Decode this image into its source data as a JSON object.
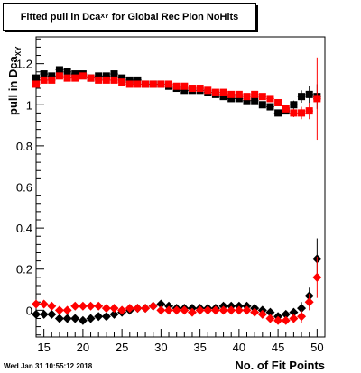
{
  "title": {
    "main": "Fitted pull in Dca",
    "subscript": "XY",
    "suffix": " for Global Rec Pion NoHits"
  },
  "footer": {
    "date": "Wed Jan 31 10:55:12 2018"
  },
  "chart_data": {
    "type": "scatter",
    "xlabel": "No. of Fit Points",
    "ylabel": "pull in Dca",
    "ylabel_sub": "XY",
    "xlim": [
      14,
      51
    ],
    "ylim": [
      -0.13,
      1.33
    ],
    "x_ticks": [
      15,
      20,
      25,
      30,
      35,
      40,
      45,
      50
    ],
    "y_ticks": [
      0,
      0.2,
      0.4,
      0.6,
      0.8,
      1,
      1.2
    ],
    "x_tick_labels": [
      "15",
      "20",
      "25",
      "30",
      "35",
      "40",
      "45",
      "50"
    ],
    "y_tick_labels": [
      "0",
      "0.2",
      "0.4",
      "0.6",
      "0.8",
      "1",
      "1.2"
    ],
    "grid": false,
    "series": [
      {
        "marker": "square",
        "color": "#000000",
        "x": [
          14,
          15,
          16,
          17,
          18,
          19,
          20,
          21,
          22,
          23,
          24,
          25,
          26,
          27,
          28,
          29,
          30,
          31,
          32,
          33,
          34,
          35,
          36,
          37,
          38,
          39,
          40,
          41,
          42,
          43,
          44,
          45,
          46,
          47,
          48,
          49,
          50
        ],
        "y": [
          1.13,
          1.15,
          1.14,
          1.17,
          1.16,
          1.15,
          1.15,
          1.13,
          1.14,
          1.14,
          1.15,
          1.13,
          1.12,
          1.12,
          1.1,
          1.1,
          1.1,
          1.09,
          1.08,
          1.07,
          1.07,
          1.07,
          1.06,
          1.05,
          1.04,
          1.03,
          1.03,
          1.02,
          1.02,
          1.0,
          0.99,
          0.96,
          0.97,
          1.0,
          1.04,
          1.05,
          1.04
        ],
        "err": [
          0.01,
          0.01,
          0.01,
          0.01,
          0.01,
          0.01,
          0.01,
          0.01,
          0.01,
          0.01,
          0.01,
          0.01,
          0.01,
          0.01,
          0.01,
          0.01,
          0.01,
          0.01,
          0.01,
          0.01,
          0.01,
          0.01,
          0.01,
          0.01,
          0.01,
          0.01,
          0.01,
          0.01,
          0.01,
          0.01,
          0.01,
          0.01,
          0.01,
          0.02,
          0.03,
          0.04,
          0.06
        ]
      },
      {
        "marker": "square",
        "color": "#ff0000",
        "x": [
          14,
          15,
          16,
          17,
          18,
          19,
          20,
          21,
          22,
          23,
          24,
          25,
          26,
          27,
          28,
          29,
          30,
          31,
          32,
          33,
          34,
          35,
          36,
          37,
          38,
          39,
          40,
          41,
          42,
          43,
          44,
          45,
          46,
          47,
          48,
          49,
          50
        ],
        "y": [
          1.1,
          1.12,
          1.12,
          1.14,
          1.13,
          1.13,
          1.14,
          1.13,
          1.12,
          1.12,
          1.12,
          1.11,
          1.1,
          1.1,
          1.1,
          1.1,
          1.1,
          1.1,
          1.09,
          1.09,
          1.08,
          1.08,
          1.07,
          1.06,
          1.06,
          1.05,
          1.05,
          1.04,
          1.05,
          1.04,
          1.03,
          1.01,
          0.98,
          0.96,
          0.96,
          0.97,
          1.03
        ],
        "err": [
          0.01,
          0.01,
          0.01,
          0.01,
          0.01,
          0.01,
          0.01,
          0.01,
          0.01,
          0.01,
          0.01,
          0.01,
          0.01,
          0.01,
          0.01,
          0.01,
          0.01,
          0.01,
          0.01,
          0.01,
          0.01,
          0.01,
          0.01,
          0.01,
          0.01,
          0.01,
          0.01,
          0.01,
          0.01,
          0.01,
          0.01,
          0.01,
          0.01,
          0.02,
          0.03,
          0.04,
          0.2
        ]
      },
      {
        "marker": "diamond",
        "color": "#000000",
        "x": [
          14,
          15,
          16,
          17,
          18,
          19,
          20,
          21,
          22,
          23,
          24,
          25,
          26,
          27,
          28,
          29,
          30,
          31,
          32,
          33,
          34,
          35,
          36,
          37,
          38,
          39,
          40,
          41,
          42,
          43,
          44,
          45,
          46,
          47,
          48,
          49,
          50
        ],
        "y": [
          -0.02,
          -0.02,
          -0.02,
          -0.04,
          -0.04,
          -0.04,
          -0.05,
          -0.04,
          -0.03,
          -0.03,
          -0.02,
          -0.01,
          0.0,
          0.01,
          0.01,
          0.02,
          0.03,
          0.02,
          0.01,
          0.01,
          0.01,
          0.01,
          0.01,
          0.01,
          0.02,
          0.02,
          0.02,
          0.02,
          0.01,
          0.0,
          -0.01,
          -0.03,
          -0.02,
          -0.01,
          0.01,
          0.07,
          0.25
        ],
        "err": [
          0.01,
          0.01,
          0.01,
          0.01,
          0.01,
          0.01,
          0.01,
          0.01,
          0.01,
          0.01,
          0.01,
          0.01,
          0.01,
          0.01,
          0.01,
          0.01,
          0.01,
          0.01,
          0.01,
          0.01,
          0.01,
          0.01,
          0.01,
          0.01,
          0.01,
          0.01,
          0.01,
          0.01,
          0.01,
          0.01,
          0.01,
          0.01,
          0.01,
          0.02,
          0.03,
          0.04,
          0.1
        ]
      },
      {
        "marker": "diamond",
        "color": "#ff0000",
        "x": [
          14,
          15,
          16,
          17,
          18,
          19,
          20,
          21,
          22,
          23,
          24,
          25,
          26,
          27,
          28,
          29,
          30,
          31,
          32,
          33,
          34,
          35,
          36,
          37,
          38,
          39,
          40,
          41,
          42,
          43,
          44,
          45,
          46,
          47,
          48,
          49,
          50
        ],
        "y": [
          0.03,
          0.03,
          0.02,
          0.0,
          0.0,
          0.02,
          0.02,
          0.02,
          0.02,
          0.01,
          0.01,
          0.0,
          0.01,
          0.01,
          0.01,
          0.02,
          0.0,
          0.0,
          0.0,
          0.0,
          -0.01,
          0.0,
          0.0,
          0.0,
          0.0,
          0.0,
          0.0,
          0.0,
          -0.01,
          -0.02,
          -0.04,
          -0.05,
          -0.05,
          -0.04,
          -0.03,
          0.04,
          0.16
        ],
        "err": [
          0.01,
          0.01,
          0.01,
          0.01,
          0.01,
          0.01,
          0.01,
          0.01,
          0.01,
          0.01,
          0.01,
          0.01,
          0.01,
          0.01,
          0.01,
          0.01,
          0.01,
          0.01,
          0.01,
          0.01,
          0.01,
          0.01,
          0.01,
          0.01,
          0.01,
          0.01,
          0.01,
          0.01,
          0.01,
          0.01,
          0.01,
          0.01,
          0.01,
          0.02,
          0.03,
          0.04,
          0.1
        ]
      }
    ]
  }
}
